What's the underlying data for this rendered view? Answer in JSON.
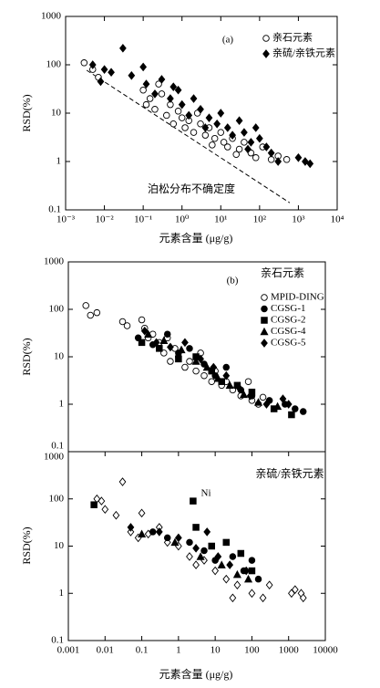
{
  "chart_data": [
    {
      "type": "scatter",
      "title": "(a)",
      "x_label": "元素含量 (μg/g)",
      "y_label": "RSD(%)",
      "log_x": true,
      "log_y": true,
      "legend": "upper right",
      "xlim": [
        0.001,
        10000
      ],
      "ylim": [
        0.1,
        1000
      ],
      "xticks": [
        {
          "value": 0.001,
          "label": "10⁻³"
        },
        {
          "value": 0.01,
          "label": "10⁻²"
        },
        {
          "value": 0.1,
          "label": "10⁻¹"
        },
        {
          "value": 1,
          "label": "10⁰"
        },
        {
          "value": 10,
          "label": "10¹"
        },
        {
          "value": 100,
          "label": "10²"
        },
        {
          "value": 1000,
          "label": "10³"
        },
        {
          "value": 10000,
          "label": "10⁴"
        }
      ],
      "yticks": [
        0.1,
        1,
        10,
        100,
        1000
      ],
      "reference_line": {
        "label": "泊松分布不确定度",
        "x": [
          0.0035,
          600
        ],
        "y": [
          77,
          0.14
        ]
      },
      "series": [
        {
          "name": "亲石元素",
          "marker": "circle-open",
          "color": "#000000",
          "x": [
            0.003,
            0.005,
            0.007,
            0.1,
            0.15,
            0.2,
            0.3,
            0.4,
            0.5,
            0.6,
            0.8,
            1,
            1.2,
            1.5,
            2,
            2.5,
            3,
            4,
            5,
            7,
            10,
            12,
            15,
            20,
            30,
            40,
            60,
            80,
            120,
            200,
            300,
            500,
            0.25,
            0.12,
            6,
            25
          ],
          "values": [
            110,
            80,
            55,
            30,
            20,
            12,
            25,
            9,
            15,
            6,
            11,
            8,
            5,
            7,
            4,
            10,
            6,
            3.5,
            5,
            3,
            4,
            2.5,
            2,
            3,
            1.8,
            2.5,
            1.5,
            1.2,
            2,
            1.1,
            1.3,
            1.1,
            40,
            15,
            2.2,
            1.4
          ]
        },
        {
          "name": "亲硫/亲铁元素",
          "marker": "diamond",
          "color": "#000000",
          "x": [
            0.005,
            0.008,
            0.01,
            0.015,
            0.03,
            0.05,
            0.1,
            0.12,
            0.2,
            0.3,
            0.5,
            0.8,
            1,
            1.5,
            2,
            3,
            5,
            8,
            10,
            15,
            20,
            30,
            40,
            60,
            80,
            100,
            150,
            200,
            300,
            1000,
            1500,
            2000,
            0.6,
            4,
            50
          ],
          "values": [
            100,
            45,
            80,
            70,
            220,
            60,
            90,
            40,
            25,
            50,
            20,
            30,
            15,
            9,
            20,
            12,
            8,
            6,
            10,
            5,
            3.5,
            7,
            4,
            2.5,
            5,
            3,
            2,
            1.5,
            1,
            1.2,
            1,
            0.9,
            35,
            5,
            1.8
          ]
        }
      ]
    },
    {
      "type": "scatter",
      "title": "(b)",
      "subtitle": "亲石元素",
      "y_label": "RSD(%)",
      "log_x": true,
      "log_y": true,
      "legend": "upper right",
      "xlim": [
        0.001,
        10000
      ],
      "ylim": [
        0.1,
        1000
      ],
      "yticks": [
        0.1,
        1,
        10,
        100,
        1000
      ],
      "series": [
        {
          "name": "MPID-DING",
          "marker": "circle-open",
          "color": "#000000",
          "x": [
            0.003,
            0.004,
            0.006,
            0.03,
            0.04,
            0.1,
            0.12,
            0.15,
            0.2,
            0.3,
            0.4,
            0.5,
            0.6,
            0.8,
            1,
            1.5,
            2,
            3,
            4,
            5,
            8,
            10,
            15,
            20,
            30,
            50,
            80,
            100,
            150,
            200
          ],
          "values": [
            120,
            75,
            85,
            55,
            45,
            60,
            40,
            25,
            30,
            20,
            12,
            25,
            8,
            15,
            10,
            6,
            8,
            5,
            12,
            4,
            3,
            5,
            2.5,
            3,
            2,
            1.5,
            3,
            1.2,
            1,
            1.4
          ]
        },
        {
          "name": "CGSG-1",
          "marker": "circle",
          "color": "#000000",
          "x": [
            0.08,
            0.2,
            0.5,
            1,
            2,
            5,
            10,
            20,
            50,
            100,
            300,
            800,
            1500,
            2500
          ],
          "values": [
            25,
            18,
            30,
            12,
            15,
            7,
            4,
            6,
            2,
            1.5,
            1.2,
            1,
            0.8,
            0.7
          ]
        },
        {
          "name": "CGSG-2",
          "marker": "square",
          "color": "#000000",
          "x": [
            0.1,
            0.3,
            1,
            3,
            8,
            15,
            40,
            100,
            400,
            1200
          ],
          "values": [
            20,
            15,
            9,
            10,
            5,
            3,
            2.5,
            1.8,
            0.8,
            0.6
          ]
        },
        {
          "name": "CGSG-4",
          "marker": "triangle",
          "color": "#000000",
          "x": [
            0.15,
            0.4,
            1.2,
            3,
            6,
            12,
            25,
            60,
            150,
            500
          ],
          "values": [
            30,
            22,
            14,
            8,
            6,
            3.5,
            2.5,
            1.6,
            1.1,
            0.9
          ]
        },
        {
          "name": "CGSG-5",
          "marker": "diamond",
          "color": "#000000",
          "x": [
            0.12,
            0.25,
            0.6,
            1.5,
            4,
            9,
            20,
            45,
            90,
            250,
            700,
            1000
          ],
          "values": [
            35,
            20,
            16,
            20,
            9,
            6,
            4,
            2.2,
            1.5,
            1,
            1.3,
            1
          ]
        }
      ]
    },
    {
      "type": "scatter",
      "subtitle": "亲硫/亲铁元素",
      "annotation": "Ni",
      "x_label": "元素含量 (μg/g)",
      "y_label": "RSD(%)",
      "log_x": true,
      "log_y": true,
      "xlim": [
        0.001,
        10000
      ],
      "ylim": [
        0.1,
        1000
      ],
      "xticks": [
        0.001,
        0.01,
        0.1,
        1,
        10,
        100,
        1000,
        10000
      ],
      "yticks": [
        0.1,
        1,
        10,
        100,
        1000
      ],
      "series": [
        {
          "marker": "diamond-open",
          "color": "#000000",
          "x": [
            0.006,
            0.008,
            0.01,
            0.02,
            0.03,
            0.05,
            0.08,
            0.1,
            0.15,
            0.3,
            0.5,
            1,
            2,
            3,
            5,
            10,
            20,
            40,
            100,
            200,
            300,
            1200,
            1500,
            2200,
            2500,
            30
          ],
          "values": [
            100,
            90,
            60,
            45,
            230,
            20,
            15,
            50,
            18,
            25,
            12,
            10,
            6,
            4,
            5,
            3,
            2,
            1.5,
            1,
            0.8,
            1.5,
            1,
            1.2,
            1,
            0.8,
            0.8
          ]
        },
        {
          "marker": "circle",
          "color": "#000000",
          "x": [
            0.2,
            0.5,
            2,
            5,
            10,
            30,
            60,
            100,
            150
          ],
          "values": [
            20,
            15,
            12,
            8,
            5,
            6,
            3,
            5,
            2
          ]
        },
        {
          "marker": "square",
          "color": "#000000",
          "x": [
            0.005,
            2.5,
            3,
            8,
            20,
            50,
            100
          ],
          "values": [
            75,
            90,
            25,
            10,
            12,
            7,
            3
          ]
        },
        {
          "marker": "triangle",
          "color": "#000000",
          "x": [
            0.1,
            0.8,
            4,
            15,
            40,
            80
          ],
          "values": [
            18,
            12,
            6,
            4,
            2.5,
            2
          ]
        },
        {
          "marker": "diamond",
          "color": "#000000",
          "x": [
            0.05,
            0.3,
            1,
            3,
            6,
            12,
            25,
            70
          ],
          "values": [
            25,
            20,
            15,
            9,
            20,
            6,
            4,
            3
          ]
        }
      ]
    }
  ]
}
